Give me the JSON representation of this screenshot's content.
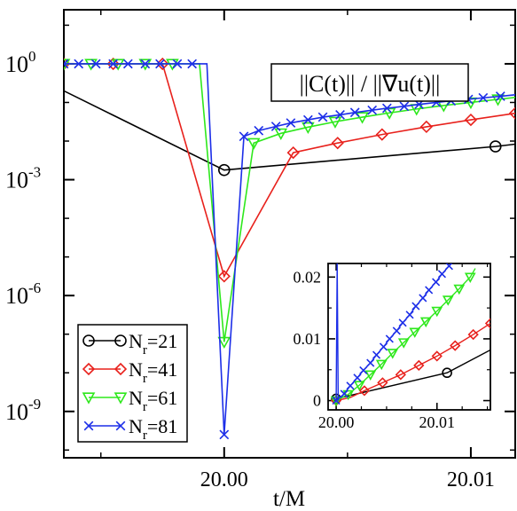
{
  "chart_data": [
    {
      "type": "line",
      "xlabel": "t/M",
      "ylabel": "",
      "yscale": "log",
      "xlim": [
        19.9935,
        20.0118
      ],
      "ylim_exponent": [
        -10.2,
        1.4
      ],
      "xticks": [
        {
          "value": 20.0,
          "label": "20.00"
        },
        {
          "value": 20.01,
          "label": "20.01"
        }
      ],
      "yticks": [
        {
          "exponent": 0,
          "base": "10",
          "sup": "0"
        },
        {
          "exponent": -3,
          "base": "10",
          "sup": "-3"
        },
        {
          "exponent": -6,
          "base": "10",
          "sup": "-6"
        },
        {
          "exponent": -9,
          "base": "10",
          "sup": "-9"
        }
      ],
      "annotation": {
        "parts": [
          "||C(t)|| / ||",
          "∇",
          "u(t)||"
        ]
      },
      "legend": {
        "placement": "bottom-left",
        "entries": [
          {
            "base": "N",
            "sub": "r",
            "suffix": "=21"
          },
          {
            "base": "N",
            "sub": "r",
            "suffix": "=41"
          },
          {
            "base": "N",
            "sub": "r",
            "suffix": "=61"
          },
          {
            "base": "N",
            "sub": "r",
            "suffix": "=81"
          }
        ]
      },
      "series": [
        {
          "color": "#000000",
          "marker": "circle",
          "x": [
            19.9935,
            20.0,
            20.011,
            20.0118
          ],
          "log10y": [
            -0.7,
            -2.75,
            -2.14,
            -2.08
          ],
          "marker_x": [
            20.0,
            20.011
          ]
        },
        {
          "color": "#e8211c",
          "marker": "diamond",
          "x": [
            19.9935,
            19.9955,
            19.9975,
            20.0,
            20.0028,
            20.0046,
            20.0064,
            20.0082,
            20.01,
            20.0118
          ],
          "log10y": [
            0.0,
            0.0,
            0.0,
            -5.5,
            -2.3,
            -2.05,
            -1.83,
            -1.63,
            -1.45,
            -1.28
          ],
          "marker_x": [
            19.9935,
            19.9955,
            19.9975,
            20.0,
            20.0028,
            20.0046,
            20.0064,
            20.0082,
            20.01,
            20.0118
          ]
        },
        {
          "color": "#2ee81c",
          "marker": "triangle-down",
          "x": [
            19.9935,
            19.9946,
            19.9957,
            19.9968,
            19.9979,
            19.999,
            20.0,
            20.0012,
            20.0023,
            20.0034,
            20.0045,
            20.0056,
            20.0067,
            20.0078,
            20.0089,
            20.01,
            20.0111,
            20.0118
          ],
          "log10y": [
            0.0,
            0.0,
            0.0,
            0.0,
            0.0,
            0.0,
            -7.2,
            -2.05,
            -1.8,
            -1.64,
            -1.5,
            -1.38,
            -1.27,
            -1.17,
            -1.08,
            -1.0,
            -0.92,
            -0.87
          ],
          "marker_x": [
            19.9935,
            19.9946,
            19.9957,
            19.9968,
            19.9979,
            20.0,
            20.0012,
            20.0023,
            20.0034,
            20.0045,
            20.0056,
            20.0067,
            20.0078,
            20.0089,
            20.01,
            20.0111
          ]
        },
        {
          "color": "#1c2ee8",
          "marker": "x",
          "x": [
            19.9935,
            19.9941,
            19.9948,
            19.9955,
            19.9961,
            19.9968,
            19.9974,
            19.9981,
            19.9987,
            19.9993,
            20.0,
            20.0008,
            20.0014,
            20.0021,
            20.0027,
            20.0034,
            20.004,
            20.0047,
            20.0053,
            20.006,
            20.0066,
            20.0073,
            20.0079,
            20.0086,
            20.0092,
            20.0099,
            20.0105,
            20.0112,
            20.0118
          ],
          "log10y": [
            0.0,
            0.0,
            0.0,
            0.0,
            0.0,
            0.0,
            0.0,
            0.0,
            0.0,
            0.0,
            -9.6,
            -1.88,
            -1.73,
            -1.62,
            -1.53,
            -1.45,
            -1.38,
            -1.32,
            -1.26,
            -1.2,
            -1.15,
            -1.1,
            -1.05,
            -1.0,
            -0.96,
            -0.92,
            -0.88,
            -0.84,
            -0.8
          ],
          "marker_x": [
            19.9935,
            19.9941,
            19.9948,
            19.9955,
            19.9961,
            19.9968,
            19.9974,
            19.9981,
            19.9987,
            20.0,
            20.0008,
            20.0014,
            20.0021,
            20.0027,
            20.0034,
            20.004,
            20.0047,
            20.0053,
            20.006,
            20.0066,
            20.0073,
            20.0079,
            20.0086,
            20.0092,
            20.0099,
            20.0105,
            20.0112
          ]
        }
      ]
    },
    {
      "type": "line",
      "inset": true,
      "xlim": [
        19.9992,
        20.0153
      ],
      "ylim": [
        -0.0015,
        0.0222
      ],
      "xticks": [
        {
          "value": 20.0,
          "label": "20.00"
        },
        {
          "value": 20.01,
          "label": "20.01"
        }
      ],
      "yticks": [
        {
          "value": 0.0,
          "label": "0"
        },
        {
          "value": 0.01,
          "label": "0.01"
        },
        {
          "value": 0.02,
          "label": "0.02"
        }
      ],
      "series": [
        {
          "color": "#000000",
          "marker": "circle",
          "x": [
            20.0,
            20.011,
            20.0153
          ],
          "y": [
            0.0003,
            0.0045,
            0.0082
          ],
          "marker_x": [
            20.0,
            20.011
          ]
        },
        {
          "color": "#e8211c",
          "marker": "diamond",
          "x": [
            20.0,
            20.0014,
            20.0028,
            20.0046,
            20.0064,
            20.0082,
            20.01,
            20.0118,
            20.0136,
            20.0153
          ],
          "y": [
            0.0,
            0.0005,
            0.0016,
            0.0029,
            0.0042,
            0.0057,
            0.0072,
            0.0089,
            0.0107,
            0.0125
          ],
          "marker_x": [
            20.0,
            20.0028,
            20.0046,
            20.0064,
            20.0082,
            20.01,
            20.0118,
            20.0136,
            20.0153
          ]
        },
        {
          "color": "#2ee81c",
          "marker": "triangle-down",
          "x": [
            20.0,
            20.0012,
            20.0023,
            20.0034,
            20.0045,
            20.0056,
            20.0067,
            20.0078,
            20.0089,
            20.01,
            20.0111,
            20.0122,
            20.0133,
            20.0138
          ],
          "y": [
            0.0,
            0.001,
            0.0025,
            0.0042,
            0.0059,
            0.0077,
            0.0094,
            0.0111,
            0.0128,
            0.0145,
            0.0163,
            0.0181,
            0.02,
            0.0214
          ],
          "marker_x": [
            20.0,
            20.0012,
            20.0023,
            20.0034,
            20.0045,
            20.0056,
            20.0067,
            20.0078,
            20.0089,
            20.01,
            20.0111,
            20.0122,
            20.0133
          ]
        },
        {
          "color": "#1c2ee8",
          "marker": "x",
          "x": [
            20.0,
            20.0008,
            20.0014,
            20.0021,
            20.0027,
            20.0034,
            20.004,
            20.0047,
            20.0053,
            20.006,
            20.0066,
            20.0073,
            20.0079,
            20.0086,
            20.0092,
            20.0099,
            20.0105,
            20.0112,
            20.0116
          ],
          "y": [
            0.0,
            0.0011,
            0.0024,
            0.0037,
            0.0049,
            0.0061,
            0.0074,
            0.0087,
            0.01,
            0.0113,
            0.0126,
            0.0139,
            0.0153,
            0.0166,
            0.0179,
            0.0192,
            0.0205,
            0.0218,
            0.0226
          ],
          "marker_x": [
            20.0,
            20.0008,
            20.0014,
            20.0021,
            20.0027,
            20.0034,
            20.004,
            20.0047,
            20.0053,
            20.006,
            20.0066,
            20.0073,
            20.0079,
            20.0086,
            20.0092,
            20.0099,
            20.0105,
            20.0112
          ]
        },
        {
          "color": "#1c2ee8",
          "marker": "none",
          "note_spike": true,
          "x": [
            20.0,
            20.0001,
            20.0002
          ],
          "y": [
            0.0,
            0.0222,
            0.0
          ]
        }
      ]
    }
  ]
}
